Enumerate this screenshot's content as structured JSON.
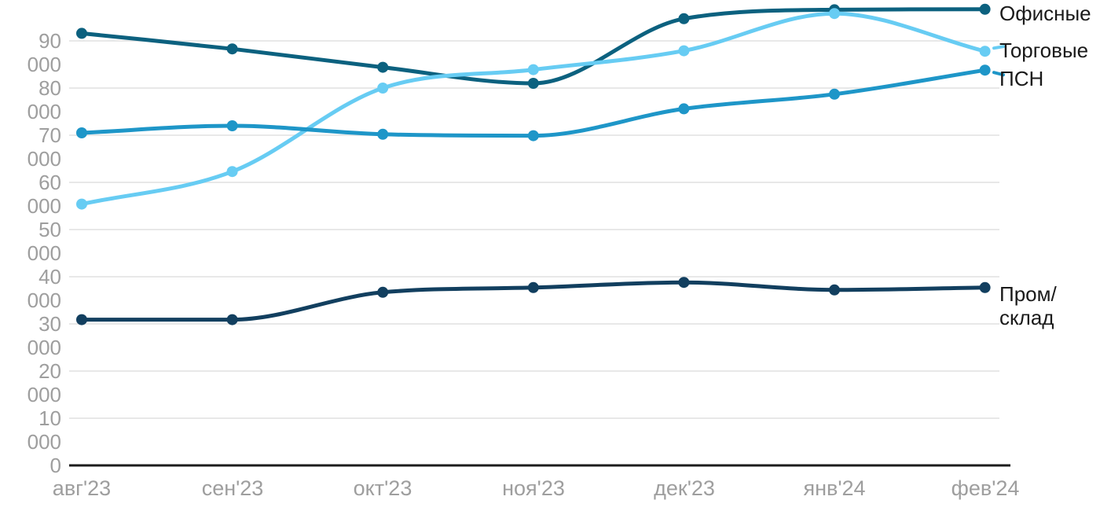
{
  "chart_data": {
    "type": "line",
    "title": "",
    "xlabel": "",
    "ylabel": "",
    "categories": [
      "авг'23",
      "сен'23",
      "окт'23",
      "ноя'23",
      "дек'23",
      "янв'24",
      "фев'24"
    ],
    "series": [
      {
        "name": "Офисные",
        "color": "#0c617f",
        "values": [
          91600,
          88300,
          84400,
          81000,
          94700,
          96600,
          96700
        ]
      },
      {
        "name": "Торговые",
        "color": "#67ccf3",
        "values": [
          55400,
          62300,
          80000,
          83900,
          87900,
          95800,
          87800
        ]
      },
      {
        "name": "ПСН",
        "color": "#1e96c8",
        "values": [
          70500,
          72000,
          70200,
          69900,
          75600,
          78700,
          83800
        ]
      },
      {
        "name": "Пром/склад",
        "color": "#123f5f",
        "values": [
          30900,
          30900,
          36700,
          37700,
          38800,
          37200,
          37700
        ]
      }
    ],
    "ylim": [
      0,
      100000
    ],
    "yticks": [
      0,
      10000,
      20000,
      30000,
      40000,
      50000,
      60000,
      70000,
      80000,
      90000
    ],
    "ytick_labels": [
      "0",
      "10 000",
      "20 000",
      "30 000",
      "40 000",
      "50 000",
      "60 000",
      "70 000",
      "80 000",
      "90 000"
    ],
    "grid": true,
    "legend_position": "right"
  },
  "legend": {
    "items": [
      {
        "label": "Офисные"
      },
      {
        "label": "Торговые"
      },
      {
        "label": "ПСН"
      },
      {
        "label": "Пром/\nсклад"
      }
    ]
  },
  "colors": {
    "tick_text": "#9e9e9e",
    "grid": "#e8e8e8",
    "axis_line": "#1c1c1c",
    "legend_text": "#1a1a1a"
  }
}
